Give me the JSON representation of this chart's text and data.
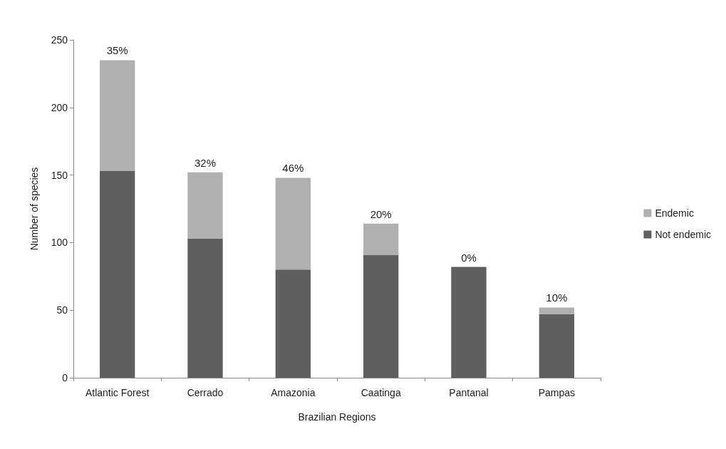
{
  "chart_data": {
    "type": "bar",
    "stacked": true,
    "xlabel": "Brazilian Regions",
    "ylabel": "Number of species",
    "categories": [
      "Atlantic Forest",
      "Cerrado",
      "Amazonia",
      "Caatinga",
      "Pantanal",
      "Pampas"
    ],
    "series": [
      {
        "name": "Not endemic",
        "color": "#5f5f5f",
        "values": [
          153,
          103,
          80,
          91,
          82,
          47
        ]
      },
      {
        "name": "Endemic",
        "color": "#b0b0b0",
        "values": [
          82,
          49,
          68,
          23,
          0,
          5
        ]
      }
    ],
    "ylim": [
      0,
      250
    ],
    "yticks": [
      0,
      50,
      100,
      150,
      200,
      250
    ],
    "grid": false,
    "legend": "right",
    "annotations": [
      {
        "text": "35%",
        "x": "Atlantic Forest",
        "y": 235
      },
      {
        "text": "32%",
        "x": "Cerrado",
        "y": 152
      },
      {
        "text": "46%",
        "x": "Amazonia",
        "y": 148
      },
      {
        "text": "20%",
        "x": "Caatinga",
        "y": 114
      },
      {
        "text": "0%",
        "x": "Pantanal",
        "y": 82
      },
      {
        "text": "10%",
        "x": "Pampas",
        "y": 52
      }
    ]
  }
}
